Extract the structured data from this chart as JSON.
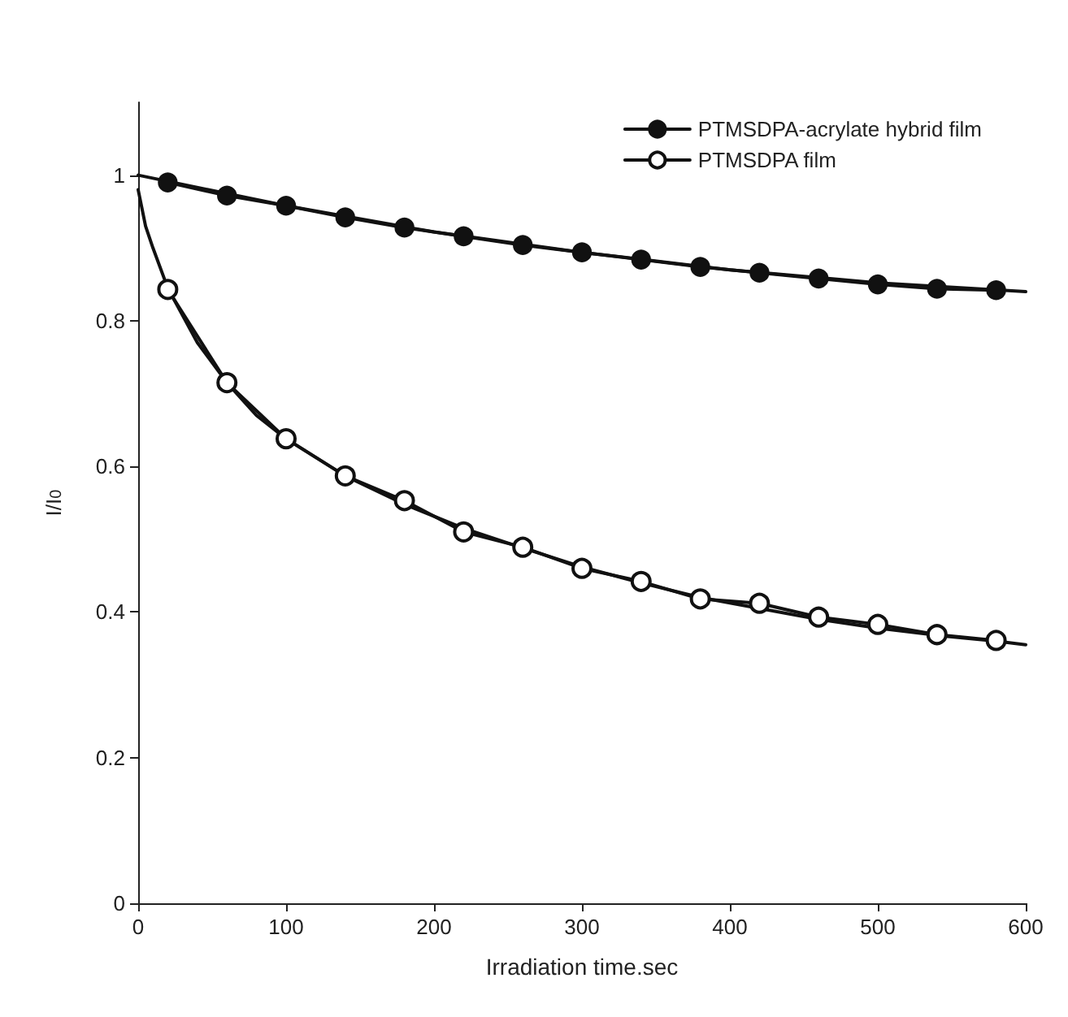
{
  "chart_data": {
    "type": "line",
    "xlabel": "Irradiation time.sec",
    "ylabel": "I/I$_{0}$",
    "xlim": [
      0,
      600
    ],
    "xticks": [
      0,
      100,
      200,
      300,
      400,
      500,
      600
    ],
    "ylim": [
      0,
      1.1
    ],
    "yticks": [
      0,
      0.2,
      0.4,
      0.6,
      0.8,
      1
    ],
    "grid": false,
    "legend": "top right",
    "line_style": "solid",
    "series": [
      {
        "name": "PTMSDPA-acrylate hybrid film",
        "color": "#111111",
        "marker": "circle",
        "x": [
          20,
          60,
          100,
          140,
          180,
          220,
          260,
          300,
          340,
          380,
          420,
          460,
          500,
          540,
          580
        ],
        "values": [
          0.99,
          0.972,
          0.958,
          0.942,
          0.928,
          0.916,
          0.904,
          0.894,
          0.884,
          0.874,
          0.866,
          0.858,
          0.85,
          0.844,
          0.842
        ]
      },
      {
        "name": "PTMSDPA film",
        "color": "#111111",
        "marker": "open_circle",
        "x": [
          20,
          60,
          100,
          140,
          180,
          220,
          260,
          300,
          340,
          380,
          420,
          460,
          500,
          540,
          580
        ],
        "values": [
          0.843,
          0.715,
          0.638,
          0.587,
          0.553,
          0.51,
          0.489,
          0.46,
          0.442,
          0.418,
          0.412,
          0.393,
          0.383,
          0.369,
          0.361
        ]
      },
      {
        "color": "#111111",
        "marker": "none",
        "x": [
          0,
          100,
          200,
          300,
          400,
          500,
          600
        ],
        "values": [
          1,
          0.958,
          0.922,
          0.894,
          0.87,
          0.852,
          0.84
        ]
      },
      {
        "color": "#111111",
        "marker": "none",
        "x": [
          0,
          5,
          10,
          20,
          40,
          60,
          80,
          100,
          140,
          180,
          220,
          260,
          300,
          340,
          380,
          420,
          460,
          500,
          540,
          580,
          600
        ],
        "values": [
          0.98,
          0.93,
          0.9,
          0.845,
          0.77,
          0.715,
          0.67,
          0.638,
          0.587,
          0.548,
          0.515,
          0.488,
          0.462,
          0.44,
          0.42,
          0.405,
          0.39,
          0.378,
          0.368,
          0.36,
          0.355
        ]
      }
    ]
  }
}
